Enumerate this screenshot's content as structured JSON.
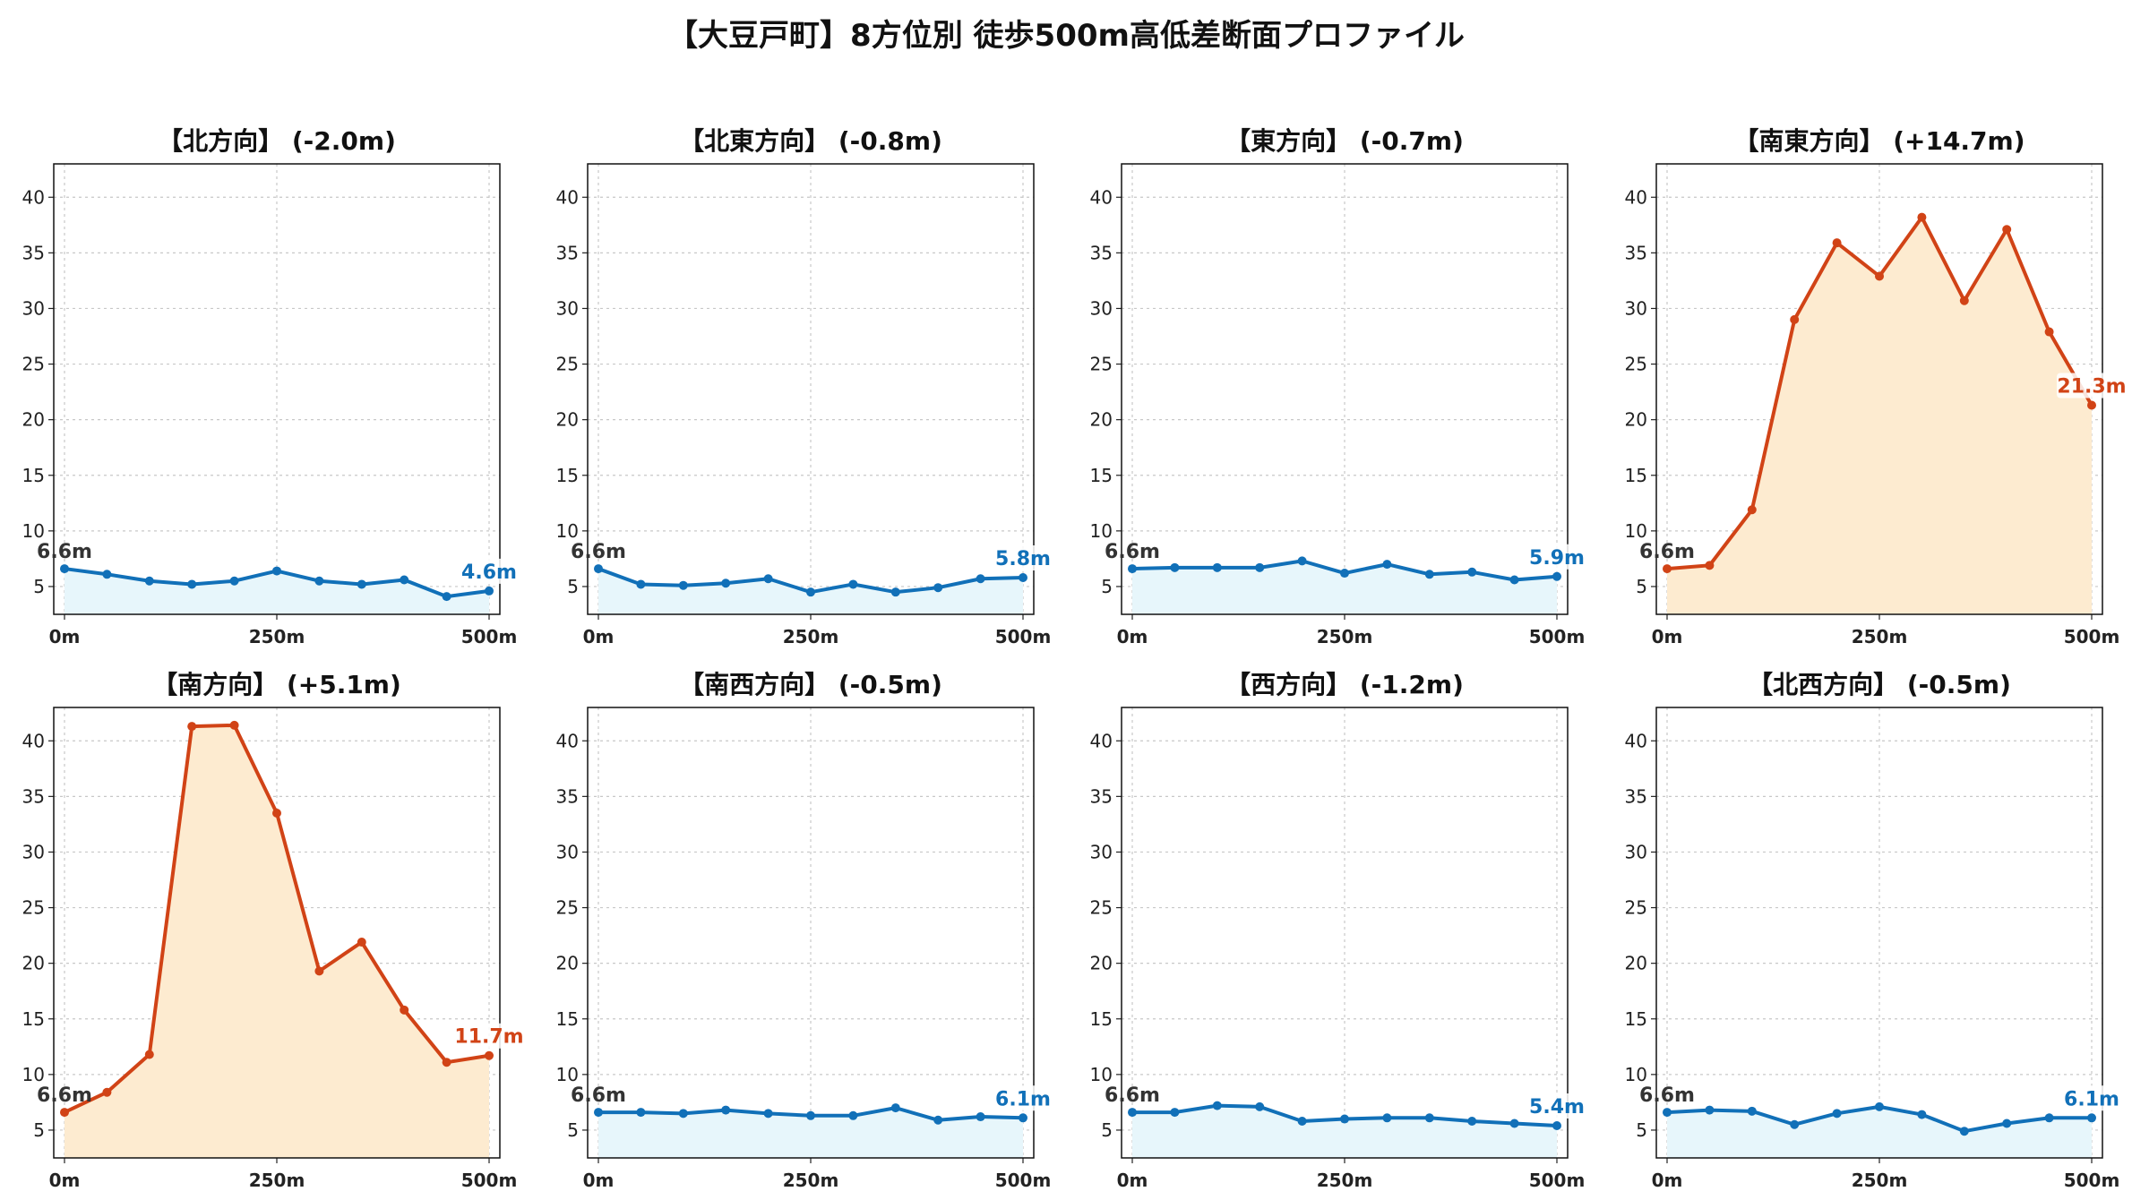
{
  "title": "【大豆戸町】8方位別 徒歩500m高低差断面プロファイル",
  "colors": {
    "flat_line": "#1170b8",
    "flat_fill": "#e7f6fb",
    "rise_line": "#d14316",
    "rise_fill": "#fdebd0",
    "grid": "#c8c8c8"
  },
  "chart_data": [
    {
      "type": "area",
      "title": "【北方向】 (-2.0m)",
      "x": [
        0,
        50,
        100,
        150,
        200,
        250,
        300,
        350,
        400,
        450,
        500
      ],
      "values": [
        6.6,
        6.1,
        5.5,
        5.2,
        5.5,
        6.4,
        5.5,
        5.2,
        5.6,
        4.1,
        4.6
      ],
      "start_label": "6.6m",
      "end_label": "4.6m",
      "style": "flat",
      "xticks": [
        "0m",
        "250m",
        "500m"
      ],
      "yticks": [
        5,
        10,
        15,
        20,
        25,
        30,
        35,
        40
      ],
      "ylim": [
        2.5,
        43
      ],
      "grid": true
    },
    {
      "type": "area",
      "title": "【北東方向】 (-0.8m)",
      "x": [
        0,
        50,
        100,
        150,
        200,
        250,
        300,
        350,
        400,
        450,
        500
      ],
      "values": [
        6.6,
        5.2,
        5.1,
        5.3,
        5.7,
        4.5,
        5.2,
        4.5,
        4.9,
        5.7,
        5.8
      ],
      "start_label": "6.6m",
      "end_label": "5.8m",
      "style": "flat",
      "xticks": [
        "0m",
        "250m",
        "500m"
      ],
      "yticks": [
        5,
        10,
        15,
        20,
        25,
        30,
        35,
        40
      ],
      "ylim": [
        2.5,
        43
      ],
      "grid": true
    },
    {
      "type": "area",
      "title": "【東方向】 (-0.7m)",
      "x": [
        0,
        50,
        100,
        150,
        200,
        250,
        300,
        350,
        400,
        450,
        500
      ],
      "values": [
        6.6,
        6.7,
        6.7,
        6.7,
        7.3,
        6.2,
        7.0,
        6.1,
        6.3,
        5.6,
        5.9
      ],
      "start_label": "6.6m",
      "end_label": "5.9m",
      "style": "flat",
      "xticks": [
        "0m",
        "250m",
        "500m"
      ],
      "yticks": [
        5,
        10,
        15,
        20,
        25,
        30,
        35,
        40
      ],
      "ylim": [
        2.5,
        43
      ],
      "grid": true
    },
    {
      "type": "area",
      "title": "【南東方向】 (+14.7m)",
      "x": [
        0,
        50,
        100,
        150,
        200,
        250,
        300,
        350,
        400,
        450,
        500
      ],
      "values": [
        6.6,
        6.9,
        11.9,
        29.0,
        35.9,
        32.9,
        38.2,
        30.7,
        37.1,
        27.9,
        21.3
      ],
      "start_label": "6.6m",
      "end_label": "21.3m",
      "style": "rise",
      "xticks": [
        "0m",
        "250m",
        "500m"
      ],
      "yticks": [
        5,
        10,
        15,
        20,
        25,
        30,
        35,
        40
      ],
      "ylim": [
        2.5,
        43
      ],
      "grid": true
    },
    {
      "type": "area",
      "title": "【南方向】 (+5.1m)",
      "x": [
        0,
        50,
        100,
        150,
        200,
        250,
        300,
        350,
        400,
        450,
        500
      ],
      "values": [
        6.6,
        8.4,
        11.8,
        41.3,
        41.4,
        33.5,
        19.3,
        21.9,
        15.8,
        11.1,
        11.7
      ],
      "start_label": "6.6m",
      "end_label": "11.7m",
      "style": "rise",
      "xticks": [
        "0m",
        "250m",
        "500m"
      ],
      "yticks": [
        5,
        10,
        15,
        20,
        25,
        30,
        35,
        40
      ],
      "ylim": [
        2.5,
        43
      ],
      "grid": true
    },
    {
      "type": "area",
      "title": "【南西方向】 (-0.5m)",
      "x": [
        0,
        50,
        100,
        150,
        200,
        250,
        300,
        350,
        400,
        450,
        500
      ],
      "values": [
        6.6,
        6.6,
        6.5,
        6.8,
        6.5,
        6.3,
        6.3,
        7.0,
        5.9,
        6.2,
        6.1
      ],
      "start_label": "6.6m",
      "end_label": "6.1m",
      "style": "flat",
      "xticks": [
        "0m",
        "250m",
        "500m"
      ],
      "yticks": [
        5,
        10,
        15,
        20,
        25,
        30,
        35,
        40
      ],
      "ylim": [
        2.5,
        43
      ],
      "grid": true
    },
    {
      "type": "area",
      "title": "【西方向】 (-1.2m)",
      "x": [
        0,
        50,
        100,
        150,
        200,
        250,
        300,
        350,
        400,
        450,
        500
      ],
      "values": [
        6.6,
        6.6,
        7.2,
        7.1,
        5.8,
        6.0,
        6.1,
        6.1,
        5.8,
        5.6,
        5.4
      ],
      "start_label": "6.6m",
      "end_label": "5.4m",
      "style": "flat",
      "xticks": [
        "0m",
        "250m",
        "500m"
      ],
      "yticks": [
        5,
        10,
        15,
        20,
        25,
        30,
        35,
        40
      ],
      "ylim": [
        2.5,
        43
      ],
      "grid": true
    },
    {
      "type": "area",
      "title": "【北西方向】 (-0.5m)",
      "x": [
        0,
        50,
        100,
        150,
        200,
        250,
        300,
        350,
        400,
        450,
        500
      ],
      "values": [
        6.6,
        6.8,
        6.7,
        5.5,
        6.5,
        7.1,
        6.4,
        4.9,
        5.6,
        6.1,
        6.1
      ],
      "start_label": "6.6m",
      "end_label": "6.1m",
      "style": "flat",
      "xticks": [
        "0m",
        "250m",
        "500m"
      ],
      "yticks": [
        5,
        10,
        15,
        20,
        25,
        30,
        35,
        40
      ],
      "ylim": [
        2.5,
        43
      ],
      "grid": true
    }
  ]
}
